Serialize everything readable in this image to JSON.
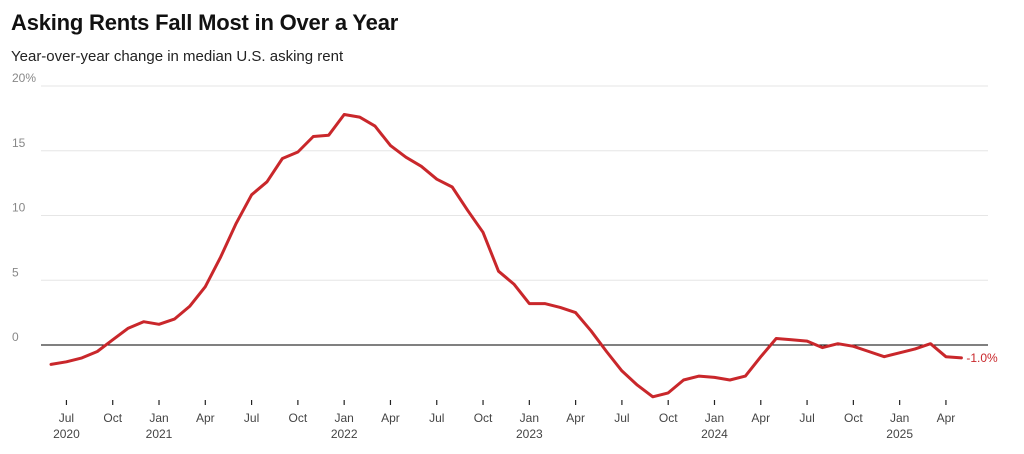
{
  "header": {
    "title": "Asking Rents Fall Most in Over a Year",
    "subtitle": "Year-over-year change in median U.S. asking rent"
  },
  "colors": {
    "line": "#c9272b",
    "grid": "#e6e6e6",
    "zero": "#000000"
  },
  "chart_data": {
    "type": "line",
    "title": "Asking Rents Fall Most in Over a Year",
    "subtitle": "Year-over-year change in median U.S. asking rent",
    "xlabel": "",
    "ylabel": "",
    "x_start": "2020-06",
    "x_end": "2025-05",
    "ylim": [
      -4,
      20
    ],
    "yticks": [
      {
        "value": 20,
        "label": "20%"
      },
      {
        "value": 15,
        "label": "15"
      },
      {
        "value": 10,
        "label": "10"
      },
      {
        "value": 5,
        "label": "5"
      },
      {
        "value": 0,
        "label": "0"
      }
    ],
    "xticks": [
      {
        "date": "2020-07",
        "month": "Jul",
        "year": "2020"
      },
      {
        "date": "2020-10",
        "month": "Oct",
        "year": ""
      },
      {
        "date": "2021-01",
        "month": "Jan",
        "year": "2021"
      },
      {
        "date": "2021-04",
        "month": "Apr",
        "year": ""
      },
      {
        "date": "2021-07",
        "month": "Jul",
        "year": ""
      },
      {
        "date": "2021-10",
        "month": "Oct",
        "year": ""
      },
      {
        "date": "2022-01",
        "month": "Jan",
        "year": "2022"
      },
      {
        "date": "2022-04",
        "month": "Apr",
        "year": ""
      },
      {
        "date": "2022-07",
        "month": "Jul",
        "year": ""
      },
      {
        "date": "2022-10",
        "month": "Oct",
        "year": ""
      },
      {
        "date": "2023-01",
        "month": "Jan",
        "year": "2023"
      },
      {
        "date": "2023-04",
        "month": "Apr",
        "year": ""
      },
      {
        "date": "2023-07",
        "month": "Jul",
        "year": ""
      },
      {
        "date": "2023-10",
        "month": "Oct",
        "year": ""
      },
      {
        "date": "2024-01",
        "month": "Jan",
        "year": "2024"
      },
      {
        "date": "2024-04",
        "month": "Apr",
        "year": ""
      },
      {
        "date": "2024-07",
        "month": "Jul",
        "year": ""
      },
      {
        "date": "2024-10",
        "month": "Oct",
        "year": ""
      },
      {
        "date": "2025-01",
        "month": "Jan",
        "year": "2025"
      },
      {
        "date": "2025-04",
        "month": "Apr",
        "year": ""
      }
    ],
    "grid": true,
    "legend": "none",
    "series": [
      {
        "x": [
          "2020-06",
          "2020-07",
          "2020-08",
          "2020-09",
          "2020-10",
          "2020-11",
          "2020-12",
          "2021-01",
          "2021-02",
          "2021-03",
          "2021-04",
          "2021-05",
          "2021-06",
          "2021-07",
          "2021-08",
          "2021-09",
          "2021-10",
          "2021-11",
          "2021-12",
          "2022-01",
          "2022-02",
          "2022-03",
          "2022-04",
          "2022-05",
          "2022-06",
          "2022-07",
          "2022-08",
          "2022-09",
          "2022-10",
          "2022-11",
          "2022-12",
          "2023-01",
          "2023-02",
          "2023-03",
          "2023-04",
          "2023-05",
          "2023-06",
          "2023-07",
          "2023-08",
          "2023-09",
          "2023-10",
          "2023-11",
          "2023-12",
          "2024-01",
          "2024-02",
          "2024-03",
          "2024-04",
          "2024-05",
          "2024-06",
          "2024-07",
          "2024-08",
          "2024-09",
          "2024-10",
          "2024-11",
          "2024-12",
          "2025-01",
          "2025-02",
          "2025-03",
          "2025-04",
          "2025-05"
        ],
        "values": [
          -1.5,
          -1.3,
          -1.0,
          -0.5,
          0.4,
          1.3,
          1.8,
          1.6,
          2.0,
          3.0,
          4.5,
          6.8,
          9.4,
          11.6,
          12.6,
          14.4,
          14.9,
          16.1,
          16.2,
          17.8,
          17.6,
          16.9,
          15.4,
          14.5,
          13.8,
          12.8,
          12.2,
          10.4,
          8.7,
          5.7,
          4.7,
          3.2,
          3.2,
          2.9,
          2.5,
          1.1,
          -0.5,
          -2.0,
          -3.1,
          -4.0,
          -3.7,
          -2.7,
          -2.4,
          -2.5,
          -2.7,
          -2.4,
          -0.9,
          0.5,
          0.4,
          0.3,
          -0.2,
          0.1,
          -0.1,
          -0.5,
          -0.9,
          -0.6,
          -0.3,
          0.1,
          -0.9,
          -1.0
        ]
      }
    ],
    "annotations": [
      {
        "label": "-1.0%",
        "value": -1.0
      }
    ]
  }
}
